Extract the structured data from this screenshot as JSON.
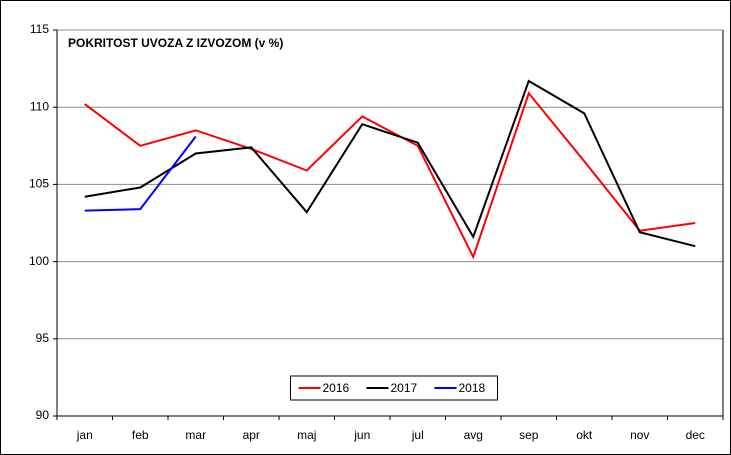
{
  "chart_data": {
    "type": "line",
    "title": "POKRITOST UVOZA Z IZVOZOM (v %)",
    "categories": [
      "jan",
      "feb",
      "mar",
      "apr",
      "maj",
      "jun",
      "jul",
      "avg",
      "sep",
      "okt",
      "nov",
      "dec"
    ],
    "series": [
      {
        "name": "2016",
        "color": "#ff0000",
        "values": [
          110.2,
          107.5,
          108.5,
          107.3,
          105.9,
          109.4,
          107.5,
          100.3,
          110.9,
          106.5,
          102.0,
          102.5
        ]
      },
      {
        "name": "2017",
        "color": "#000000",
        "values": [
          104.2,
          104.8,
          107.0,
          107.4,
          103.2,
          108.9,
          107.7,
          101.6,
          111.7,
          109.6,
          101.9,
          101.0
        ]
      },
      {
        "name": "2018",
        "color": "#0000ff",
        "values": [
          103.3,
          103.4,
          108.1,
          null,
          null,
          null,
          null,
          null,
          null,
          null,
          null,
          null
        ]
      }
    ],
    "ylim": [
      90,
      115
    ],
    "yticks": [
      90,
      95,
      100,
      105,
      110,
      115
    ],
    "grid": true,
    "legend": "bottom"
  }
}
